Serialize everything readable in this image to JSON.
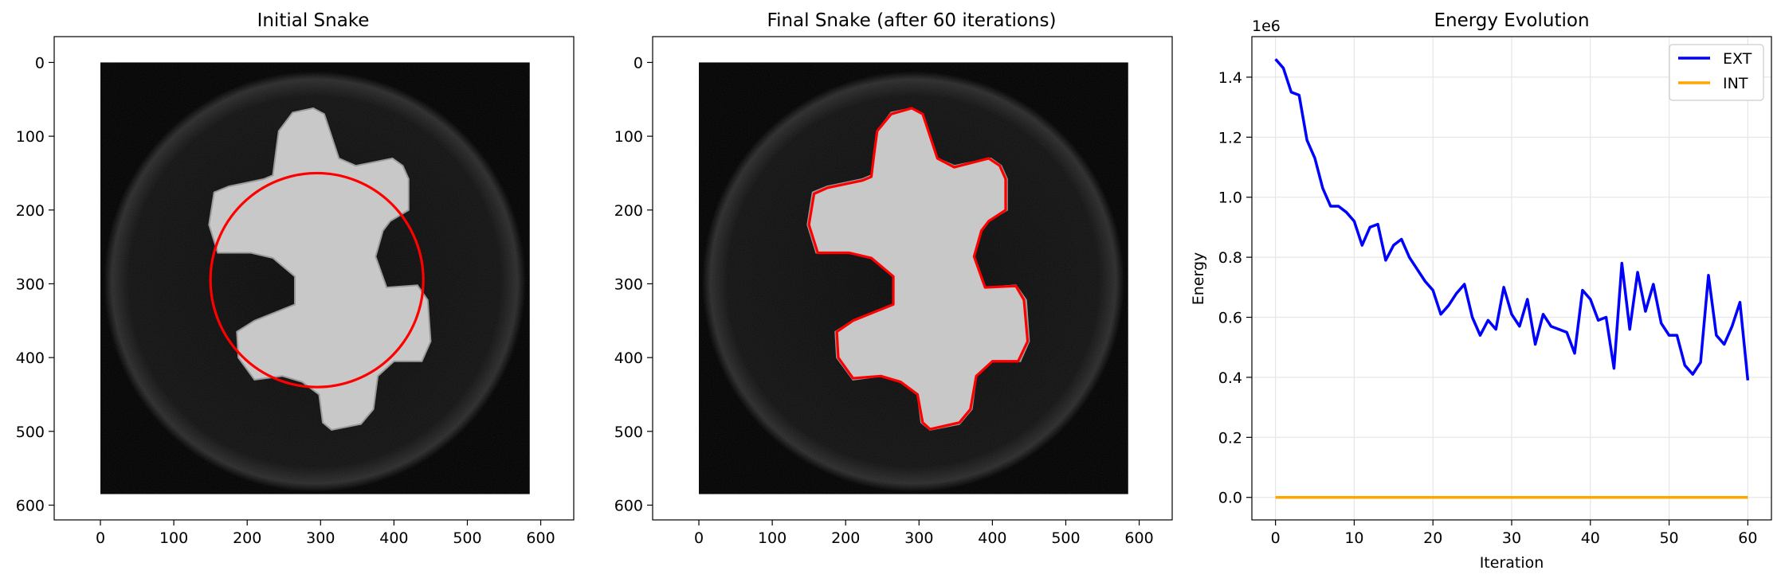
{
  "panels": {
    "initial": {
      "title": "Initial Snake",
      "x_ticks": [
        "0",
        "100",
        "200",
        "300",
        "400",
        "500",
        "600"
      ],
      "y_ticks": [
        "0",
        "100",
        "200",
        "300",
        "400",
        "500",
        "600"
      ]
    },
    "final": {
      "title": "Final Snake (after 60 iterations)",
      "x_ticks": [
        "0",
        "100",
        "200",
        "300",
        "400",
        "500",
        "600"
      ],
      "y_ticks": [
        "0",
        "100",
        "200",
        "300",
        "400",
        "500",
        "600"
      ]
    }
  },
  "chart_data": [
    {
      "type": "image",
      "title": "Initial Snake",
      "xlim": [
        -63,
        645
      ],
      "ylim": [
        620,
        -35
      ],
      "image_extent": [
        0,
        585,
        0,
        585
      ],
      "snake_color": "#ff0000",
      "snake": {
        "shape": "circle",
        "center": [
          295,
          295
        ],
        "radius": 145
      }
    },
    {
      "type": "image",
      "title": "Final Snake (after 60 iterations)",
      "xlim": [
        -63,
        645
      ],
      "ylim": [
        620,
        -35
      ],
      "image_extent": [
        0,
        585,
        0,
        585
      ],
      "snake_color": "#ff0000",
      "snake": {
        "shape": "polygon",
        "points": [
          [
            243,
            93
          ],
          [
            262,
            70
          ],
          [
            290,
            62
          ],
          [
            305,
            70
          ],
          [
            325,
            130
          ],
          [
            348,
            142
          ],
          [
            395,
            130
          ],
          [
            410,
            140
          ],
          [
            418,
            158
          ],
          [
            418,
            200
          ],
          [
            395,
            215
          ],
          [
            385,
            228
          ],
          [
            375,
            263
          ],
          [
            390,
            305
          ],
          [
            432,
            303
          ],
          [
            443,
            322
          ],
          [
            448,
            378
          ],
          [
            435,
            405
          ],
          [
            400,
            405
          ],
          [
            378,
            425
          ],
          [
            370,
            470
          ],
          [
            355,
            488
          ],
          [
            315,
            497
          ],
          [
            305,
            488
          ],
          [
            298,
            450
          ],
          [
            275,
            433
          ],
          [
            248,
            425
          ],
          [
            210,
            428
          ],
          [
            190,
            400
          ],
          [
            188,
            365
          ],
          [
            210,
            350
          ],
          [
            265,
            328
          ],
          [
            265,
            290
          ],
          [
            235,
            265
          ],
          [
            205,
            258
          ],
          [
            162,
            258
          ],
          [
            150,
            220
          ],
          [
            157,
            178
          ],
          [
            175,
            170
          ],
          [
            223,
            160
          ],
          [
            235,
            155
          ],
          [
            240,
            115
          ]
        ]
      }
    },
    {
      "type": "line",
      "title": "Energy Evolution",
      "xlabel": "Iteration",
      "ylabel": "Energy",
      "y_offset_text": "1e6",
      "xlim": [
        -3,
        63
      ],
      "ylim": [
        -0.075,
        1.535
      ],
      "x_ticks": [
        0,
        10,
        20,
        30,
        40,
        50,
        60
      ],
      "y_ticks": [
        0.0,
        0.2,
        0.4,
        0.6,
        0.8,
        1.0,
        1.2,
        1.4
      ],
      "y_tick_labels": [
        "0.0",
        "0.2",
        "0.4",
        "0.6",
        "0.8",
        "1.0",
        "1.2",
        "1.4"
      ],
      "grid": true,
      "legend_position": "top-right",
      "x": [
        0,
        1,
        2,
        3,
        4,
        5,
        6,
        7,
        8,
        9,
        10,
        11,
        12,
        13,
        14,
        15,
        16,
        17,
        18,
        19,
        20,
        21,
        22,
        23,
        24,
        25,
        26,
        27,
        28,
        29,
        30,
        31,
        32,
        33,
        34,
        35,
        36,
        37,
        38,
        39,
        40,
        41,
        42,
        43,
        44,
        45,
        46,
        47,
        48,
        49,
        50,
        51,
        52,
        53,
        54,
        55,
        56,
        57,
        58,
        59,
        60
      ],
      "series": [
        {
          "name": "EXT",
          "color": "#0000ff",
          "values": [
            1.46,
            1.43,
            1.35,
            1.34,
            1.19,
            1.13,
            1.03,
            0.97,
            0.97,
            0.95,
            0.92,
            0.84,
            0.9,
            0.91,
            0.79,
            0.84,
            0.86,
            0.8,
            0.76,
            0.72,
            0.69,
            0.61,
            0.64,
            0.68,
            0.71,
            0.6,
            0.54,
            0.59,
            0.56,
            0.7,
            0.61,
            0.57,
            0.66,
            0.51,
            0.61,
            0.57,
            0.56,
            0.55,
            0.48,
            0.69,
            0.66,
            0.59,
            0.6,
            0.43,
            0.78,
            0.56,
            0.75,
            0.62,
            0.71,
            0.58,
            0.54,
            0.54,
            0.44,
            0.41,
            0.45,
            0.74,
            0.54,
            0.51,
            0.57,
            0.65,
            0.39
          ]
        },
        {
          "name": "INT",
          "color": "#ffa500",
          "values": [
            0,
            0,
            0,
            0,
            0,
            0,
            0,
            0,
            0,
            0,
            0,
            0,
            0,
            0,
            0,
            0,
            0,
            0,
            0,
            0,
            0,
            0,
            0,
            0,
            0,
            0,
            0,
            0,
            0,
            0,
            0,
            0,
            0,
            0,
            0,
            0,
            0,
            0,
            0,
            0,
            0,
            0,
            0,
            0,
            0,
            0,
            0,
            0,
            0,
            0,
            0,
            0,
            0,
            0,
            0,
            0,
            0,
            0,
            0,
            0,
            0
          ]
        }
      ]
    }
  ]
}
